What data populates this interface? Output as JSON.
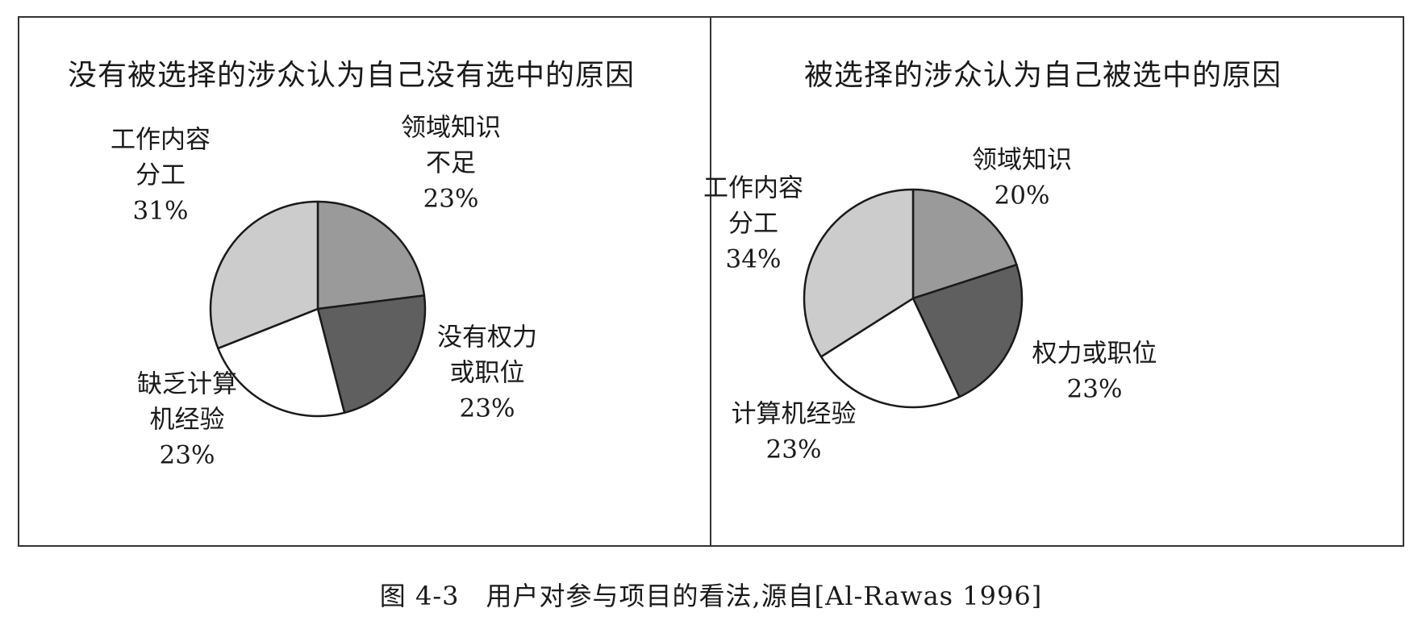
{
  "caption": "图 4-3　用户对参与项目的看法,源自[Al-Rawas 1996]",
  "chart_data": [
    {
      "type": "pie",
      "title": "没有被选择的涉众认为自己没有选中的原因",
      "slices": [
        {
          "label": [
            "领域知识",
            "不足"
          ],
          "value": 23,
          "value_label": "23%",
          "color": "#9a9a9a"
        },
        {
          "label": [
            "没有权力",
            "或职位"
          ],
          "value": 23,
          "value_label": "23%",
          "color": "#5f5f5f"
        },
        {
          "label": [
            "缺乏计算",
            "机经验"
          ],
          "value": 23,
          "value_label": "23%",
          "color": "#ffffff"
        },
        {
          "label": [
            "工作内容",
            "分工"
          ],
          "value": 31,
          "value_label": "31%",
          "color": "#cccccc"
        }
      ]
    },
    {
      "type": "pie",
      "title": "被选择的涉众认为自己被选中的原因",
      "slices": [
        {
          "label": [
            "领域知识"
          ],
          "value": 20,
          "value_label": "20%",
          "color": "#9a9a9a"
        },
        {
          "label": [
            "权力或职位"
          ],
          "value": 23,
          "value_label": "23%",
          "color": "#5f5f5f"
        },
        {
          "label": [
            "计算机经验"
          ],
          "value": 23,
          "value_label": "23%",
          "color": "#ffffff"
        },
        {
          "label": [
            "工作内容",
            "分工"
          ],
          "value": 34,
          "value_label": "34%",
          "color": "#cccccc"
        }
      ]
    }
  ]
}
